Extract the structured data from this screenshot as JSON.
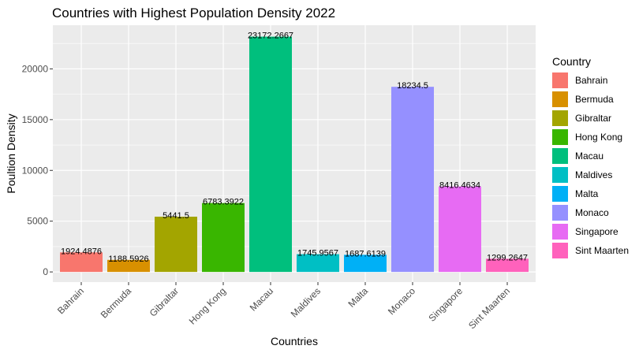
{
  "chart_data": {
    "type": "bar",
    "title": "Countries with Highest Population Density 2022",
    "xlabel": "Countries",
    "ylabel": "Poultion Density",
    "categories": [
      "Bahrain",
      "Bermuda",
      "Gibraltar",
      "Hong Kong",
      "Macau",
      "Maldives",
      "Malta",
      "Monaco",
      "Singapore",
      "Sint Maarten"
    ],
    "values": [
      1924.4876,
      1188.5926,
      5441.5,
      6783.3922,
      23172.2667,
      1745.9567,
      1687.6139,
      18234.5,
      8416.4634,
      1299.2647
    ],
    "value_labels": [
      "1924.4876",
      "1188.5926",
      "5441.5",
      "6783.3922",
      "23172.2667",
      "1745.9567",
      "1687.6139",
      "18234.5",
      "8416.4634",
      "1299.2647"
    ],
    "colors": [
      "#F8766D",
      "#D89000",
      "#A3A500",
      "#39B600",
      "#00BF7D",
      "#00BFC4",
      "#00B0F6",
      "#9590FF",
      "#E76BF3",
      "#FF62BC"
    ],
    "ylim": [
      -1000,
      24300
    ],
    "yticks": [
      0,
      5000,
      10000,
      15000,
      20000
    ],
    "ytick_labels": [
      "0",
      "5000",
      "10000",
      "15000",
      "20000"
    ],
    "legend": {
      "title": "Country",
      "position": "right",
      "labels": [
        "Bahrain",
        "Bermuda",
        "Gibraltar",
        "Hong Kong",
        "Macau",
        "Maldives",
        "Malta",
        "Monaco",
        "Singapore",
        "Sint Maarten"
      ]
    },
    "grid": true,
    "panel_background": "#EBEBEB",
    "x_tick_angle": 45
  }
}
